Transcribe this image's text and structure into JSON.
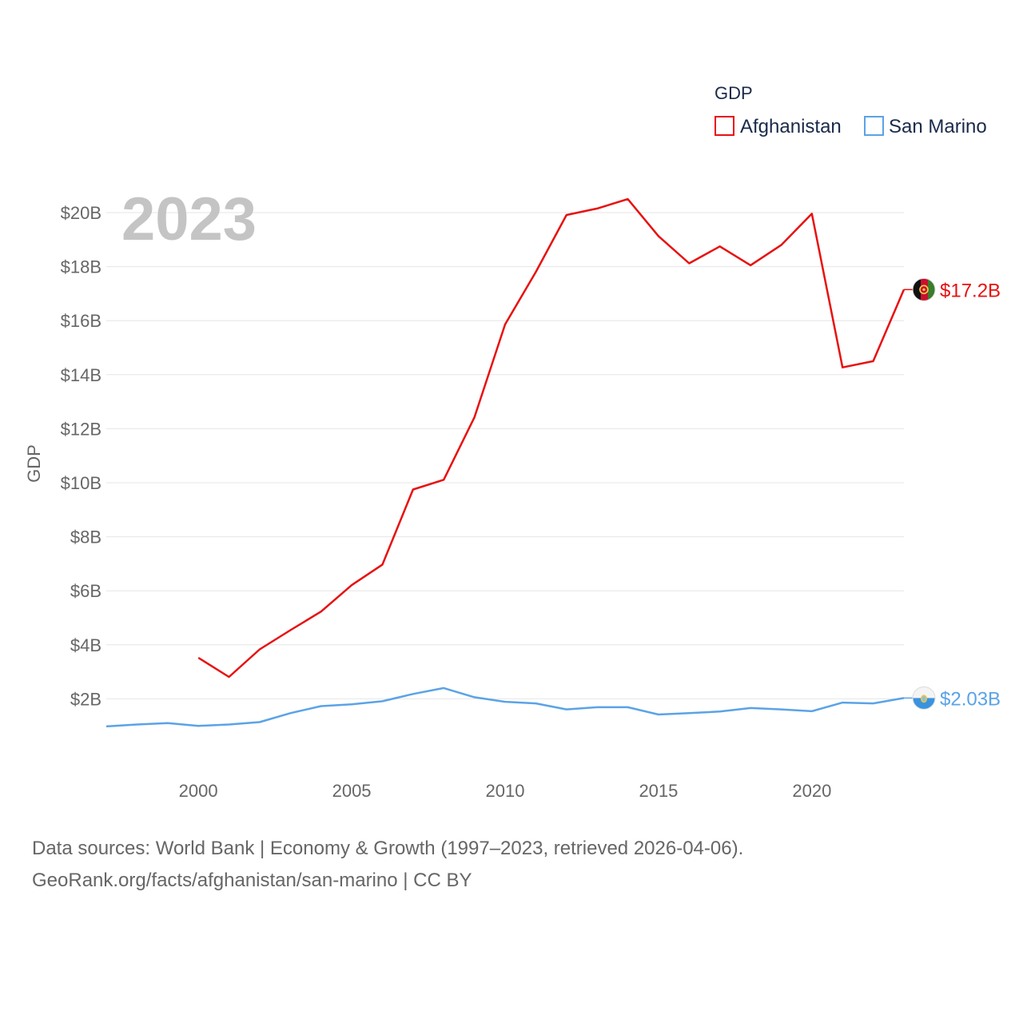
{
  "chart_data": {
    "type": "line",
    "year_label": "2023",
    "ylabel": "GDP",
    "legend_title": "GDP",
    "legend_position": "top-right",
    "xlim": [
      1997,
      2023
    ],
    "ylim": [
      0,
      21000000000
    ],
    "x_ticks": [
      2000,
      2005,
      2010,
      2015,
      2020
    ],
    "x_tick_labels": [
      "2000",
      "2005",
      "2010",
      "2015",
      "2020"
    ],
    "y_ticks": [
      2000000000,
      4000000000,
      6000000000,
      8000000000,
      10000000000,
      12000000000,
      14000000000,
      16000000000,
      18000000000,
      20000000000
    ],
    "y_tick_labels": [
      "$2B",
      "$4B",
      "$6B",
      "$8B",
      "$10B",
      "$12B",
      "$14B",
      "$16B",
      "$18B",
      "$20B"
    ],
    "grid": true,
    "series": [
      {
        "name": "Afghanistan",
        "color": "#e81010",
        "end_label": "$17.2B",
        "flag": "afghanistan-flag-icon",
        "x": [
          2000,
          2001,
          2002,
          2003,
          2004,
          2005,
          2006,
          2007,
          2008,
          2009,
          2010,
          2011,
          2012,
          2013,
          2014,
          2015,
          2016,
          2017,
          2018,
          2019,
          2020,
          2021,
          2022,
          2023
        ],
        "values": [
          3520000000.0,
          2810000000.0,
          3830000000.0,
          4540000000.0,
          5230000000.0,
          6210000000.0,
          6970000000.0,
          9750000000.0,
          10110000000.0,
          12420000000.0,
          15860000000.0,
          17800000000.0,
          19910000000.0,
          20150000000.0,
          20500000000.0,
          19130000000.0,
          18120000000.0,
          18750000000.0,
          18050000000.0,
          18800000000.0,
          19960000000.0,
          14270000000.0,
          14500000000.0,
          17150000000.0
        ]
      },
      {
        "name": "San Marino",
        "color": "#5ba3e6",
        "end_label": "$2.03B",
        "flag": "san-marino-flag-icon",
        "x": [
          1997,
          1998,
          1999,
          2000,
          2001,
          2002,
          2003,
          2004,
          2005,
          2006,
          2007,
          2008,
          2009,
          2010,
          2011,
          2012,
          2013,
          2014,
          2015,
          2016,
          2017,
          2018,
          2019,
          2020,
          2021,
          2022,
          2023
        ],
        "values": [
          980000000.0,
          1050000000.0,
          1100000000.0,
          1000000000.0,
          1050000000.0,
          1140000000.0,
          1470000000.0,
          1730000000.0,
          1800000000.0,
          1910000000.0,
          2180000000.0,
          2400000000.0,
          2060000000.0,
          1890000000.0,
          1830000000.0,
          1610000000.0,
          1690000000.0,
          1690000000.0,
          1420000000.0,
          1470000000.0,
          1530000000.0,
          1660000000.0,
          1610000000.0,
          1540000000.0,
          1860000000.0,
          1830000000.0,
          2030000000.0
        ]
      }
    ]
  },
  "source": {
    "line1": "Data sources: World Bank | Economy & Growth (1997–2023, retrieved 2026-04-06).",
    "line2": "GeoRank.org/facts/afghanistan/san-marino | CC BY"
  }
}
